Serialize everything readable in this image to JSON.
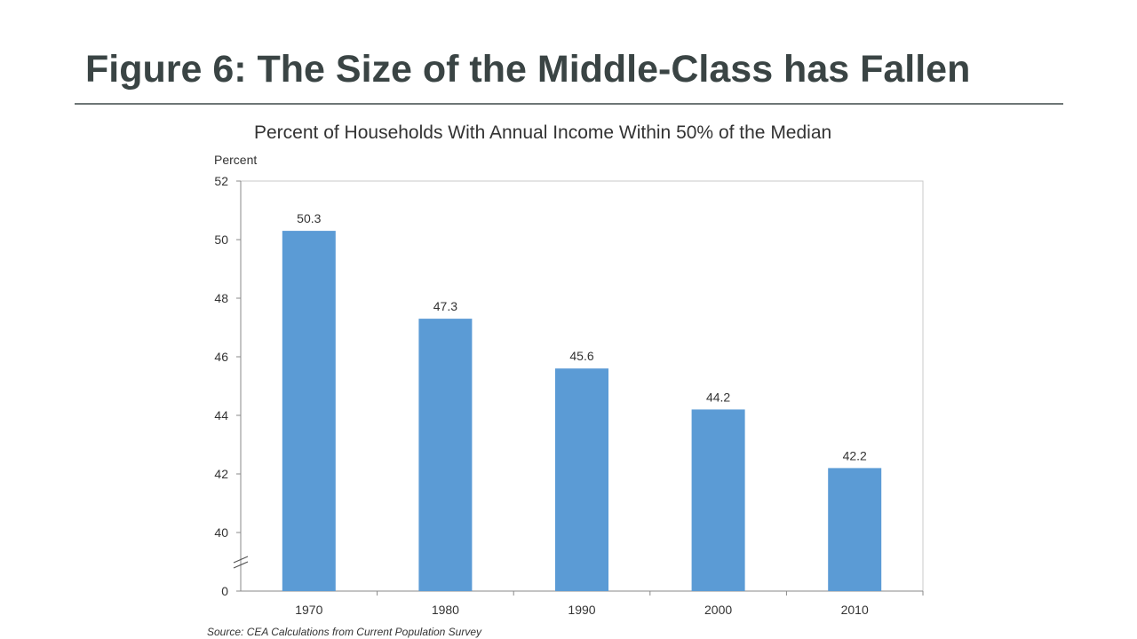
{
  "slide": {
    "title": "Figure 6: The Size of the Middle-Class has Fallen"
  },
  "chart_data": {
    "type": "bar",
    "title": "Percent of Households With Annual Income Within 50% of the Median",
    "ylabel": "Percent",
    "xlabel": "",
    "categories": [
      "1970",
      "1980",
      "1990",
      "2000",
      "2010"
    ],
    "values": [
      50.3,
      47.3,
      45.6,
      44.2,
      42.2
    ],
    "data_labels": [
      "50.3",
      "47.3",
      "45.6",
      "44.2",
      "42.2"
    ],
    "y_ticks": [
      "52",
      "50",
      "48",
      "46",
      "44",
      "42",
      "40",
      "0"
    ],
    "ylim": [
      38,
      52
    ],
    "y_axis_break": true,
    "y_axis_break_floor": 0,
    "grid": false,
    "legend": "none",
    "bar_color": "#5b9bd5",
    "source": "Source: CEA Calculations from Current Population Survey"
  }
}
